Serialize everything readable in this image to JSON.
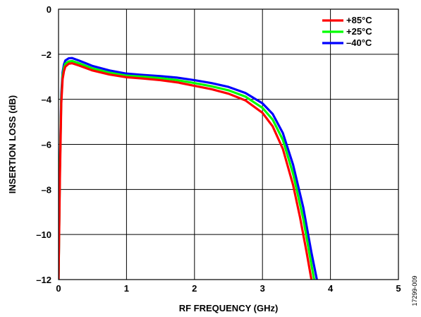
{
  "chart_data": {
    "type": "line",
    "title": "",
    "xlabel": "RF FREQUENCY (GHz)",
    "ylabel": "INSERTION LOSS (dB)",
    "xlim": [
      0,
      5
    ],
    "ylim": [
      -12,
      0
    ],
    "x_ticks": [
      "0",
      "1",
      "2",
      "3",
      "4",
      "5"
    ],
    "x_tick_values": [
      0,
      1,
      2,
      3,
      4,
      5
    ],
    "y_ticks": [
      "0",
      "–2",
      "–4",
      "–6",
      "–8",
      "–10",
      "–12"
    ],
    "y_tick_values": [
      0,
      -2,
      -4,
      -6,
      -8,
      -10,
      -12
    ],
    "grid": true,
    "legend_position": "top-right",
    "figure_id": "17299-009",
    "series": [
      {
        "name": "+85°C",
        "color": "#ff0000",
        "points": [
          [
            0.0,
            -12
          ],
          [
            0.02,
            -7.5
          ],
          [
            0.04,
            -4.2
          ],
          [
            0.06,
            -3.1
          ],
          [
            0.08,
            -2.75
          ],
          [
            0.1,
            -2.55
          ],
          [
            0.15,
            -2.42
          ],
          [
            0.2,
            -2.4
          ],
          [
            0.3,
            -2.5
          ],
          [
            0.5,
            -2.72
          ],
          [
            0.75,
            -2.9
          ],
          [
            1.0,
            -3.02
          ],
          [
            1.25,
            -3.08
          ],
          [
            1.5,
            -3.15
          ],
          [
            1.75,
            -3.25
          ],
          [
            2.0,
            -3.4
          ],
          [
            2.25,
            -3.55
          ],
          [
            2.5,
            -3.75
          ],
          [
            2.75,
            -4.05
          ],
          [
            3.0,
            -4.6
          ],
          [
            3.15,
            -5.2
          ],
          [
            3.3,
            -6.2
          ],
          [
            3.45,
            -7.8
          ],
          [
            3.55,
            -9.2
          ],
          [
            3.65,
            -10.8
          ],
          [
            3.72,
            -12.0
          ]
        ]
      },
      {
        "name": "+25°C",
        "color": "#00ff00",
        "points": [
          [
            0.0,
            -12
          ],
          [
            0.02,
            -7.2
          ],
          [
            0.04,
            -4.0
          ],
          [
            0.06,
            -2.95
          ],
          [
            0.08,
            -2.6
          ],
          [
            0.1,
            -2.42
          ],
          [
            0.15,
            -2.32
          ],
          [
            0.2,
            -2.3
          ],
          [
            0.3,
            -2.4
          ],
          [
            0.5,
            -2.63
          ],
          [
            0.75,
            -2.82
          ],
          [
            1.0,
            -2.95
          ],
          [
            1.25,
            -3.0
          ],
          [
            1.5,
            -3.06
          ],
          [
            1.75,
            -3.15
          ],
          [
            2.0,
            -3.28
          ],
          [
            2.25,
            -3.42
          ],
          [
            2.5,
            -3.6
          ],
          [
            2.75,
            -3.88
          ],
          [
            3.0,
            -4.38
          ],
          [
            3.15,
            -4.9
          ],
          [
            3.3,
            -5.8
          ],
          [
            3.45,
            -7.3
          ],
          [
            3.6,
            -9.3
          ],
          [
            3.7,
            -11.0
          ],
          [
            3.76,
            -12.0
          ]
        ]
      },
      {
        "name": "–40°C",
        "color": "#0000ff",
        "points": [
          [
            0.0,
            -12
          ],
          [
            0.02,
            -7.0
          ],
          [
            0.04,
            -3.8
          ],
          [
            0.06,
            -2.8
          ],
          [
            0.08,
            -2.45
          ],
          [
            0.1,
            -2.28
          ],
          [
            0.15,
            -2.18
          ],
          [
            0.2,
            -2.17
          ],
          [
            0.3,
            -2.28
          ],
          [
            0.5,
            -2.52
          ],
          [
            0.75,
            -2.72
          ],
          [
            1.0,
            -2.86
          ],
          [
            1.25,
            -2.92
          ],
          [
            1.5,
            -2.97
          ],
          [
            1.75,
            -3.04
          ],
          [
            2.0,
            -3.15
          ],
          [
            2.25,
            -3.28
          ],
          [
            2.5,
            -3.45
          ],
          [
            2.75,
            -3.72
          ],
          [
            3.0,
            -4.18
          ],
          [
            3.15,
            -4.65
          ],
          [
            3.3,
            -5.5
          ],
          [
            3.45,
            -6.9
          ],
          [
            3.6,
            -8.8
          ],
          [
            3.72,
            -10.8
          ],
          [
            3.8,
            -12.0
          ]
        ]
      }
    ]
  }
}
